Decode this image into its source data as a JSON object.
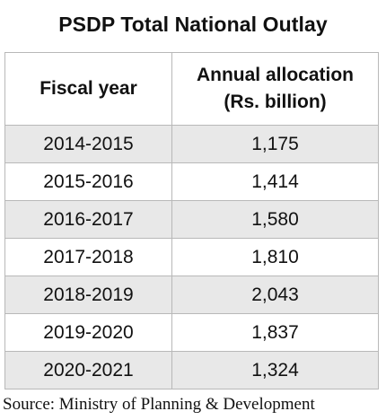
{
  "chart_data": {
    "type": "table",
    "title": "PSDP Total National Outlay",
    "columns": [
      "Fiscal year",
      "Annual allocation\n(Rs. billion)"
    ],
    "header": {
      "col1": "Fiscal year",
      "col2_line1": "Annual allocation",
      "col2_line2": "(Rs. billion)"
    },
    "rows": [
      {
        "year": "2014-2015",
        "value": "1,175"
      },
      {
        "year": "2015-2016",
        "value": "1,414"
      },
      {
        "year": "2016-2017",
        "value": "1,580"
      },
      {
        "year": "2017-2018",
        "value": "1,810"
      },
      {
        "year": "2018-2019",
        "value": "2,043"
      },
      {
        "year": "2019-2020",
        "value": "1,837"
      },
      {
        "year": "2020-2021",
        "value": "1,324"
      }
    ],
    "source": "Source: Ministry of Planning & Development"
  }
}
